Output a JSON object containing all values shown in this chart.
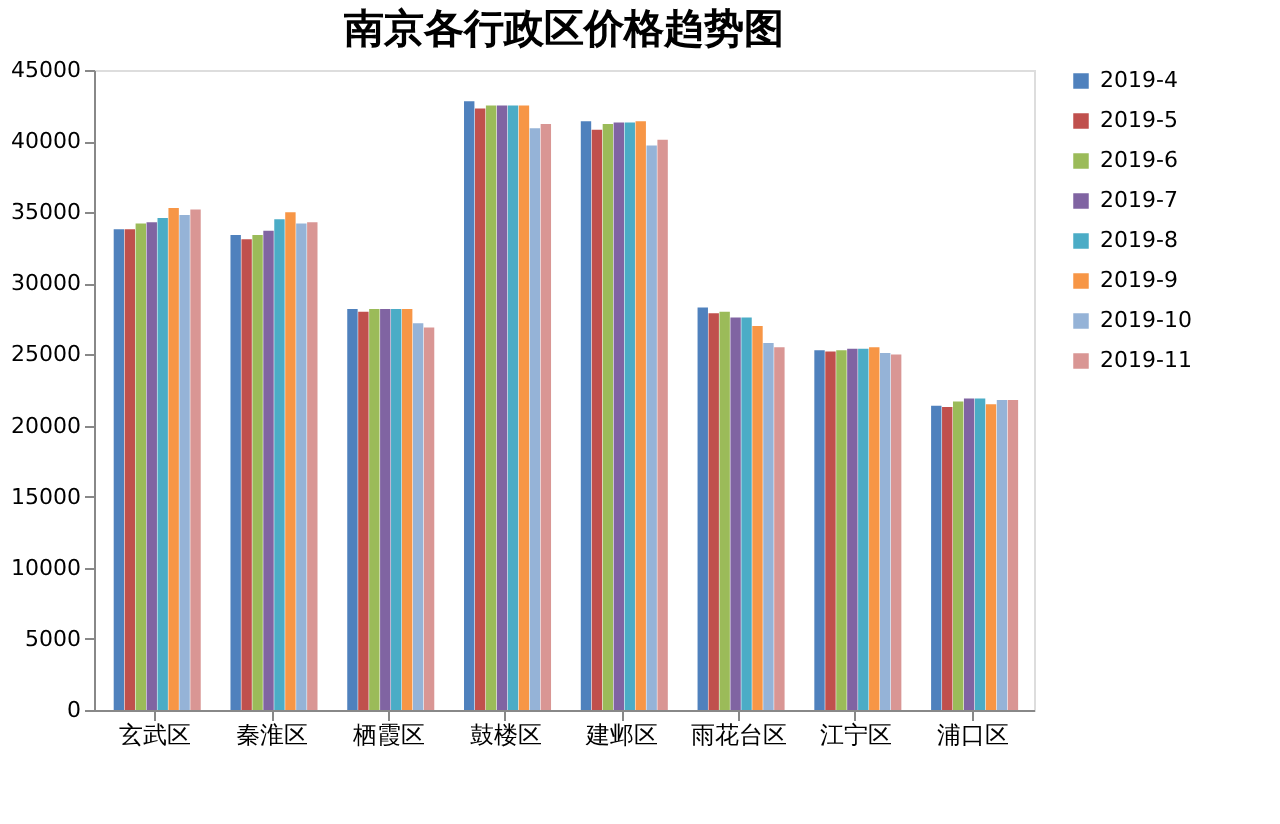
{
  "chart_data": {
    "type": "bar",
    "title": "南京各行政区价格趋势图",
    "categories": [
      "玄武区",
      "秦淮区",
      "栖霞区",
      "鼓楼区",
      "建邺区",
      "雨花台区",
      "江宁区",
      "浦口区"
    ],
    "series": [
      {
        "name": "2019-4",
        "color": "#4f81bd",
        "values": [
          33800,
          33400,
          28200,
          42800,
          41400,
          28300,
          25300,
          21400
        ]
      },
      {
        "name": "2019-5",
        "color": "#c0504d",
        "values": [
          33800,
          33100,
          28000,
          42300,
          40800,
          27900,
          25200,
          21300
        ]
      },
      {
        "name": "2019-6",
        "color": "#9bbb59",
        "values": [
          34200,
          33400,
          28200,
          42500,
          41200,
          28000,
          25300,
          21700
        ]
      },
      {
        "name": "2019-7",
        "color": "#8064a2",
        "values": [
          34300,
          33700,
          28200,
          42500,
          41300,
          27600,
          25400,
          21900
        ]
      },
      {
        "name": "2019-8",
        "color": "#4bacc6",
        "values": [
          34600,
          34500,
          28200,
          42500,
          41300,
          27600,
          25400,
          21900
        ]
      },
      {
        "name": "2019-9",
        "color": "#f79646",
        "values": [
          35300,
          35000,
          28200,
          42500,
          41400,
          27000,
          25500,
          21500
        ]
      },
      {
        "name": "2019-10",
        "color": "#95b3d7",
        "values": [
          34800,
          34200,
          27200,
          40900,
          39700,
          25800,
          25100,
          21800
        ]
      },
      {
        "name": "2019-11",
        "color": "#d99694",
        "values": [
          35200,
          34300,
          26900,
          41200,
          40100,
          25500,
          25000,
          21800
        ]
      }
    ],
    "ylim": [
      0,
      45000
    ],
    "yticks": [
      0,
      5000,
      10000,
      15000,
      20000,
      25000,
      30000,
      35000,
      40000,
      45000
    ],
    "grid": false,
    "legend": "right"
  }
}
